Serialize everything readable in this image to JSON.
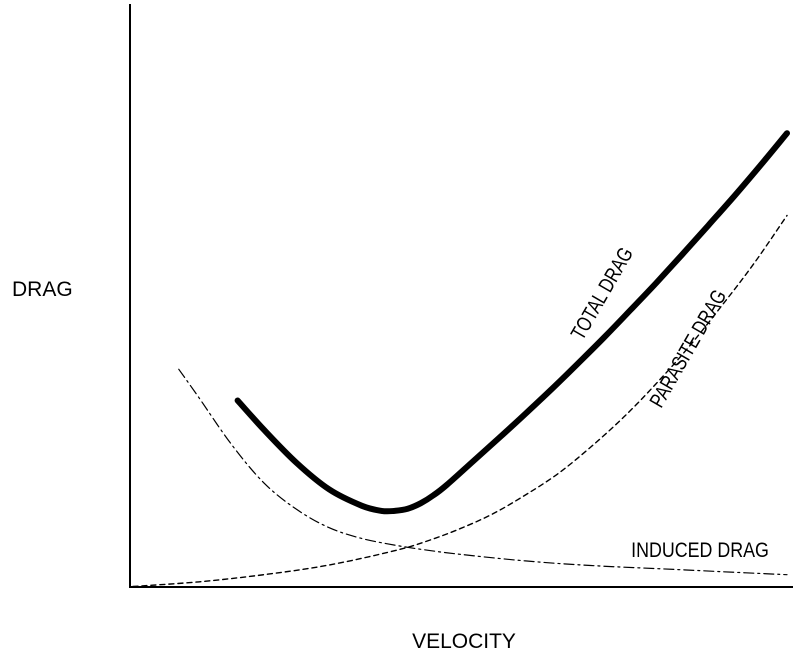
{
  "chart_data": {
    "type": "line",
    "title": "",
    "xlabel": "VELOCITY",
    "ylabel": "DRAG",
    "xlim": [
      0,
      100
    ],
    "ylim": [
      0,
      100
    ],
    "grid": false,
    "legend": "none",
    "series": [
      {
        "name": "TOTAL DRAG",
        "style": "solid-thick",
        "color": "#000000",
        "x": [
          16,
          20,
          25,
          30,
          35,
          38,
          40,
          42,
          44,
          46,
          48,
          52,
          56,
          60,
          64,
          68,
          72,
          76,
          80,
          84,
          88,
          92,
          96,
          100
        ],
        "y": [
          36.5,
          30.8,
          24.3,
          19.1,
          15.9,
          14.9,
          14.9,
          15.3,
          16.4,
          18.0,
          20.0,
          24.6,
          29.2,
          33.9,
          38.7,
          43.7,
          48.8,
          54.1,
          59.5,
          65.1,
          70.8,
          76.6,
          82.6,
          88.8
        ]
      },
      {
        "name": "PARASITE DRAG",
        "style": "dashed",
        "color": "#000000",
        "x": [
          0,
          10,
          20,
          30,
          40,
          45,
          50,
          55,
          60,
          65,
          70,
          75,
          80,
          85,
          90,
          95,
          100
        ],
        "y": [
          0.1,
          1.0,
          2.4,
          4.3,
          7.1,
          9.0,
          11.4,
          14.3,
          18.0,
          22.2,
          27.4,
          33.2,
          39.8,
          47.0,
          55.0,
          63.4,
          72.7
        ]
      },
      {
        "name": "INDUCED DRAG",
        "style": "dash-dot",
        "color": "#000000",
        "x": [
          7,
          10,
          15,
          20,
          25,
          30,
          35,
          40,
          45,
          50,
          60,
          70,
          80,
          90,
          100
        ],
        "y": [
          42.6,
          37.2,
          28.0,
          20.4,
          15.2,
          11.6,
          9.5,
          8.2,
          7.2,
          6.4,
          5.1,
          4.2,
          3.6,
          3.0,
          2.4
        ]
      }
    ],
    "annotations": [
      {
        "text": "TOTAL DRAG",
        "series": "TOTAL DRAG"
      },
      {
        "text": "PARASITE DRAG",
        "series": "PARASITE DRAG"
      },
      {
        "text": "INDUCED DRAG",
        "series": "INDUCED DRAG"
      }
    ]
  }
}
